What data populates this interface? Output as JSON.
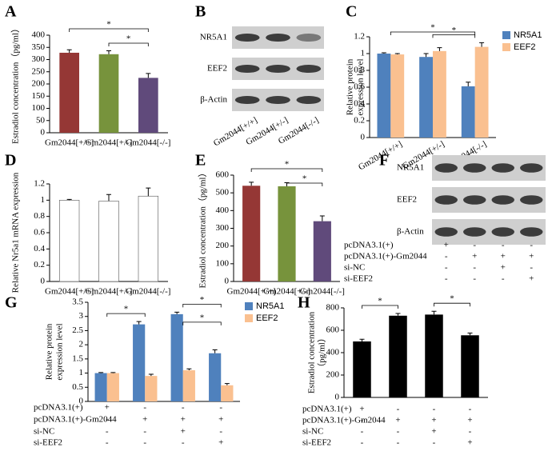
{
  "chart_data": [
    {
      "type": "bar",
      "panel": "A",
      "ylabel": [
        "Estradiol concentration（pg/ml）"
      ],
      "categories": [
        "Gm2044[+/+]",
        "Gm2044[+/-]",
        "Gm2044[-/-]"
      ],
      "values": [
        328,
        322,
        225
      ],
      "errors": [
        12,
        14,
        18
      ],
      "colors": [
        "#953735",
        "#77933c",
        "#604a7b"
      ],
      "ylim": [
        0,
        400
      ],
      "yticks": [
        0,
        50,
        100,
        150,
        200,
        250,
        300,
        350,
        400
      ],
      "significance": [
        {
          "from": 0,
          "to": 2,
          "label": "*"
        },
        {
          "from": 1,
          "to": 2,
          "label": "*"
        }
      ]
    },
    {
      "type": "blot",
      "panel": "B",
      "rows": [
        "NR5A1",
        "EEF2",
        "β-Actin"
      ],
      "lanes": [
        "Gm2044[+/+]",
        "Gm2044[+/-]",
        "Gm2044[-/-]"
      ]
    },
    {
      "type": "bar",
      "panel": "C",
      "ylabel": [
        "Relative protein",
        "expression level"
      ],
      "categories": [
        "Gm2044[+/+]",
        "Gm2044[+/-]",
        "Gm2044[-/-]"
      ],
      "series": [
        {
          "name": "NR5A1",
          "color": "#4f81bd",
          "values": [
            1.0,
            0.96,
            0.61
          ],
          "errors": [
            0.01,
            0.04,
            0.05
          ]
        },
        {
          "name": "EEF2",
          "color": "#fac090",
          "values": [
            0.99,
            1.03,
            1.08
          ],
          "errors": [
            0.01,
            0.04,
            0.05
          ]
        }
      ],
      "ylim": [
        0,
        1.2
      ],
      "yticks": [
        0,
        0.2,
        0.4,
        0.6,
        0.8,
        1,
        1.2
      ],
      "significance": [
        {
          "from": 0,
          "to": 2,
          "label": "*"
        },
        {
          "from": 1,
          "to": 2,
          "label": "*"
        }
      ]
    },
    {
      "type": "bar",
      "panel": "D",
      "ylabel": [
        "Relative Nr5a1 mRNA expression"
      ],
      "categories": [
        "Gm2044[+/+]",
        "Gm2044[+/-]",
        "Gm2044[-/-]"
      ],
      "values": [
        1.0,
        0.99,
        1.05
      ],
      "errors": [
        0.01,
        0.08,
        0.1
      ],
      "colors": [
        "#ffffff",
        "#ffffff",
        "#ffffff"
      ],
      "edgecolor": "#555555",
      "ylim": [
        0,
        1.2
      ],
      "yticks": [
        0,
        0.2,
        0.4,
        0.6,
        0.8,
        1,
        1.2
      ]
    },
    {
      "type": "bar",
      "panel": "E",
      "ylabel": [
        "Estradiol concentration（pg/ml）"
      ],
      "categories": [
        "Gm2044[+/+]",
        "Gm2044[+/-]",
        "Gm2044[-/-]"
      ],
      "values": [
        540,
        537,
        340
      ],
      "errors": [
        20,
        20,
        30
      ],
      "colors": [
        "#953735",
        "#77933c",
        "#604a7b"
      ],
      "ylim": [
        0,
        600
      ],
      "yticks": [
        0,
        100,
        200,
        300,
        400,
        500,
        600
      ],
      "significance": [
        {
          "from": 0,
          "to": 2,
          "label": "*"
        },
        {
          "from": 1,
          "to": 2,
          "label": "*"
        }
      ]
    },
    {
      "type": "blot",
      "panel": "F",
      "rows": [
        "NR5A1",
        "EEF2",
        "β-Actin"
      ],
      "conditions": [
        {
          "label": "pcDNA3.1(+)",
          "marks": [
            "+",
            "-",
            "-",
            "-"
          ]
        },
        {
          "label": "pcDNA3.1(+)-Gm2044",
          "marks": [
            "-",
            "+",
            "+",
            "+"
          ]
        },
        {
          "label": "si-NC",
          "marks": [
            "-",
            "-",
            "+",
            "-"
          ]
        },
        {
          "label": "si-EEF2",
          "marks": [
            "-",
            "-",
            "-",
            "+"
          ]
        }
      ]
    },
    {
      "type": "bar",
      "panel": "G",
      "ylabel": [
        "Relative protein",
        "expression level"
      ],
      "series": [
        {
          "name": "NR5A1",
          "color": "#4f81bd",
          "values": [
            1.0,
            2.72,
            3.08,
            1.7
          ],
          "errors": [
            0.02,
            0.1,
            0.07,
            0.12
          ]
        },
        {
          "name": "EEF2",
          "color": "#fac090",
          "values": [
            1.0,
            0.9,
            1.1,
            0.57
          ],
          "errors": [
            0.02,
            0.06,
            0.05,
            0.06
          ]
        }
      ],
      "ylim": [
        0,
        3.5
      ],
      "yticks": [
        0,
        0.5,
        1,
        1.5,
        2,
        2.5,
        3,
        3.5
      ],
      "significance": [
        {
          "from": 0,
          "to": 1,
          "label": "*"
        },
        {
          "from": 2,
          "to": 3,
          "label": "*"
        },
        {
          "from": 2,
          "to": 3,
          "label": "*"
        }
      ],
      "conditions": [
        {
          "label": "pcDNA3.1(+)",
          "marks": [
            "+",
            "-",
            "-",
            "-"
          ]
        },
        {
          "label": "pcDNA3.1(+)-Gm2044",
          "marks": [
            "-",
            "+",
            "+",
            "+"
          ]
        },
        {
          "label": "si-NC",
          "marks": [
            "-",
            "-",
            "+",
            "-"
          ]
        },
        {
          "label": "si-EEF2",
          "marks": [
            "-",
            "-",
            "-",
            "+"
          ]
        }
      ]
    },
    {
      "type": "bar",
      "panel": "H",
      "ylabel": [
        "Estradiol concentration",
        "（pg/ml）"
      ],
      "values": [
        500,
        730,
        740,
        555
      ],
      "errors": [
        20,
        20,
        30,
        20
      ],
      "colors": [
        "#000000",
        "#000000",
        "#000000",
        "#000000"
      ],
      "ylim": [
        0,
        800
      ],
      "yticks": [
        0,
        200,
        400,
        600,
        800
      ],
      "significance": [
        {
          "from": 0,
          "to": 1,
          "label": "*"
        },
        {
          "from": 2,
          "to": 3,
          "label": "*"
        }
      ],
      "conditions": [
        {
          "label": "pcDNA3.1(+)",
          "marks": [
            "+",
            "-",
            "-",
            "-"
          ]
        },
        {
          "label": "pcDNA3.1(+)-Gm2044",
          "marks": [
            "-",
            "+",
            "+",
            "+"
          ]
        },
        {
          "label": "si-NC",
          "marks": [
            "-",
            "-",
            "+",
            "-"
          ]
        },
        {
          "label": "si-EEF2",
          "marks": [
            "-",
            "-",
            "-",
            "+"
          ]
        }
      ]
    }
  ]
}
